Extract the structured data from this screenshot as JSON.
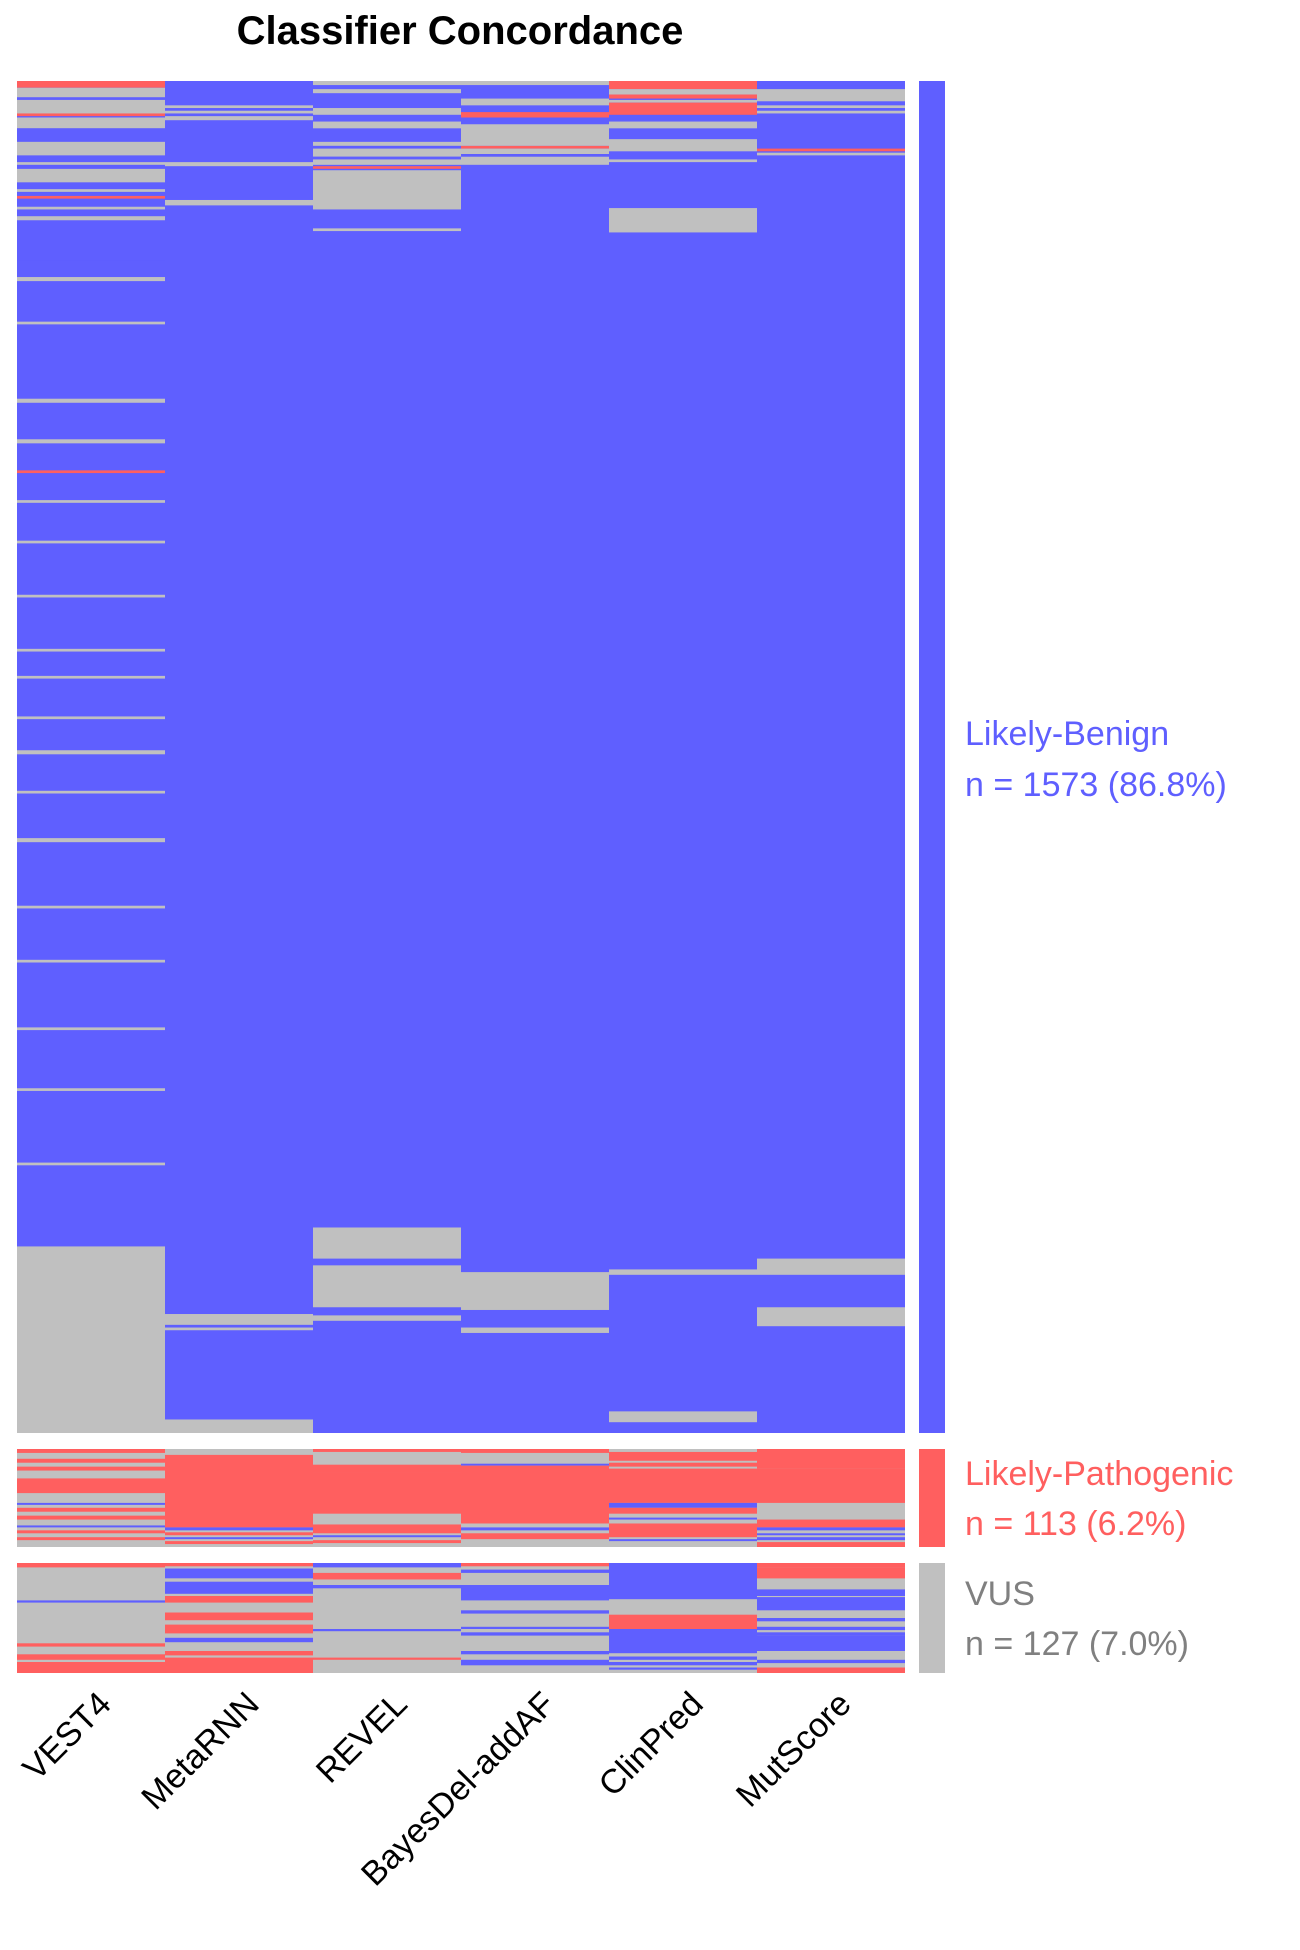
{
  "chart_data": {
    "type": "heatmap",
    "title": "Classifier Concordance",
    "columns": [
      "VEST4",
      "MetaRNN",
      "REVEL",
      "BayesDel-addAF",
      "ClinPred",
      "MutScore"
    ],
    "category_colors": {
      "Likely-Benign": "#5f5fff",
      "Likely-Pathogenic": "#ff5f5f",
      "VUS": "#c0c0c0"
    },
    "groups": [
      {
        "name": "Likely-Benign",
        "count_label": "n = 1573 (86.8%)",
        "n": 1573,
        "percent": 86.8,
        "color": "#5f5fff",
        "base": "#5f5fff",
        "cells": [
          [
            [
              0.0,
              0.005,
              "#ff5f5f"
            ],
            [
              0.005,
              0.035,
              "#c0c0c0"
            ],
            [
              0.012,
              0.014,
              "#5f5fff"
            ],
            [
              0.025,
              0.027,
              "#5f5fff"
            ],
            [
              0.024,
              0.026,
              "#ff5f5f"
            ],
            [
              0.035,
              0.045,
              "#5f5fff"
            ],
            [
              0.045,
              0.055,
              "#c0c0c0"
            ],
            [
              0.06,
              0.062,
              "#c0c0c0"
            ],
            [
              0.065,
              0.075,
              "#c0c0c0"
            ],
            [
              0.075,
              0.077,
              "#5f5fff"
            ],
            [
              0.08,
              0.082,
              "#c0c0c0"
            ],
            [
              0.085,
              0.087,
              "#ff5f5f"
            ],
            [
              0.093,
              0.095,
              "#c0c0c0"
            ],
            [
              0.1,
              0.103,
              "#c0c0c0"
            ],
            [
              0.133,
              0.135,
              "#5f5fff"
            ],
            [
              0.145,
              0.148,
              "#c0c0c0"
            ],
            [
              0.178,
              0.18,
              "#c0c0c0"
            ],
            [
              0.235,
              0.238,
              "#c0c0c0"
            ],
            [
              0.265,
              0.268,
              "#c0c0c0"
            ],
            [
              0.288,
              0.29,
              "#ff5f5f"
            ],
            [
              0.31,
              0.312,
              "#c0c0c0"
            ],
            [
              0.34,
              0.342,
              "#c0c0c0"
            ],
            [
              0.38,
              0.382,
              "#c0c0c0"
            ],
            [
              0.42,
              0.422,
              "#c0c0c0"
            ],
            [
              0.44,
              0.442,
              "#c0c0c0"
            ],
            [
              0.47,
              0.472,
              "#c0c0c0"
            ],
            [
              0.495,
              0.498,
              "#c0c0c0"
            ],
            [
              0.525,
              0.527,
              "#c0c0c0"
            ],
            [
              0.56,
              0.563,
              "#c0c0c0"
            ],
            [
              0.61,
              0.612,
              "#c0c0c0"
            ],
            [
              0.65,
              0.652,
              "#c0c0c0"
            ],
            [
              0.7,
              0.702,
              "#c0c0c0"
            ],
            [
              0.745,
              0.747,
              "#c0c0c0"
            ],
            [
              0.8,
              0.802,
              "#c0c0c0"
            ],
            [
              0.862,
              1.0,
              "#c0c0c0"
            ]
          ],
          [
            [
              0.0,
              0.01,
              "#5f5fff"
            ],
            [
              0.018,
              0.02,
              "#c0c0c0"
            ],
            [
              0.022,
              0.024,
              "#c0c0c0"
            ],
            [
              0.026,
              0.029,
              "#c0c0c0"
            ],
            [
              0.06,
              0.063,
              "#c0c0c0"
            ],
            [
              0.088,
              0.092,
              "#c0c0c0"
            ],
            [
              0.912,
              0.92,
              "#c0c0c0"
            ],
            [
              0.922,
              0.924,
              "#c0c0c0"
            ],
            [
              0.99,
              1.0,
              "#c0c0c0"
            ]
          ],
          [
            [
              0.0,
              0.003,
              "#c0c0c0"
            ],
            [
              0.006,
              0.009,
              "#c0c0c0"
            ],
            [
              0.02,
              0.025,
              "#c0c0c0"
            ],
            [
              0.03,
              0.035,
              "#c0c0c0"
            ],
            [
              0.045,
              0.048,
              "#c0c0c0"
            ],
            [
              0.048,
              0.05,
              "#5f5fff"
            ],
            [
              0.05,
              0.056,
              "#c0c0c0"
            ],
            [
              0.056,
              0.058,
              "#5f5fff"
            ],
            [
              0.058,
              0.062,
              "#c0c0c0"
            ],
            [
              0.063,
              0.065,
              "#ff5f5f"
            ],
            [
              0.065,
              0.066,
              "#5f5fff"
            ],
            [
              0.066,
              0.095,
              "#c0c0c0"
            ],
            [
              0.109,
              0.111,
              "#c0c0c0"
            ],
            [
              0.848,
              0.871,
              "#c0c0c0"
            ],
            [
              0.876,
              0.907,
              "#c0c0c0"
            ],
            [
              0.913,
              0.917,
              "#c0c0c0"
            ]
          ],
          [
            [
              0.0,
              0.003,
              "#c0c0c0"
            ],
            [
              0.013,
              0.018,
              "#c0c0c0"
            ],
            [
              0.023,
              0.027,
              "#ff5f5f"
            ],
            [
              0.032,
              0.048,
              "#c0c0c0"
            ],
            [
              0.048,
              0.05,
              "#ff5f5f"
            ],
            [
              0.05,
              0.054,
              "#c0c0c0"
            ],
            [
              0.054,
              0.056,
              "#5f5fff"
            ],
            [
              0.056,
              0.062,
              "#c0c0c0"
            ],
            [
              0.881,
              0.909,
              "#c0c0c0"
            ],
            [
              0.922,
              0.926,
              "#c0c0c0"
            ]
          ],
          [
            [
              0.0,
              0.006,
              "#ff5f5f"
            ],
            [
              0.006,
              0.01,
              "#c0c0c0"
            ],
            [
              0.01,
              0.013,
              "#ff5f5f"
            ],
            [
              0.014,
              0.016,
              "#c0c0c0"
            ],
            [
              0.016,
              0.025,
              "#ff5f5f"
            ],
            [
              0.03,
              0.035,
              "#c0c0c0"
            ],
            [
              0.043,
              0.052,
              "#c0c0c0"
            ],
            [
              0.058,
              0.06,
              "#c0c0c0"
            ],
            [
              0.094,
              0.112,
              "#c0c0c0"
            ],
            [
              0.879,
              0.883,
              "#c0c0c0"
            ],
            [
              0.984,
              0.992,
              "#c0c0c0"
            ]
          ],
          [
            [
              0.0,
              0.003,
              "#5f5fff"
            ],
            [
              0.006,
              0.015,
              "#c0c0c0"
            ],
            [
              0.018,
              0.02,
              "#c0c0c0"
            ],
            [
              0.022,
              0.024,
              "#c0c0c0"
            ],
            [
              0.05,
              0.052,
              "#ff5f5f"
            ],
            [
              0.053,
              0.055,
              "#c0c0c0"
            ],
            [
              0.871,
              0.883,
              "#c0c0c0"
            ],
            [
              0.907,
              0.921,
              "#c0c0c0"
            ]
          ]
        ]
      },
      {
        "name": "Likely-Pathogenic",
        "count_label": "n = 113 (6.2%)",
        "n": 113,
        "percent": 6.2,
        "color": "#ff5f5f",
        "base": "#c0c0c0",
        "cells": [
          [
            [
              0.0,
              0.04,
              "#ff5f5f"
            ],
            [
              0.1,
              0.14,
              "#ff5f5f"
            ],
            [
              0.18,
              0.22,
              "#ff5f5f"
            ],
            [
              0.3,
              0.45,
              "#ff5f5f"
            ],
            [
              0.55,
              0.57,
              "#5f5fff"
            ],
            [
              0.6,
              0.64,
              "#ff5f5f"
            ],
            [
              0.68,
              0.72,
              "#ff5f5f"
            ],
            [
              0.78,
              0.8,
              "#5f5fff"
            ],
            [
              0.83,
              0.86,
              "#ff5f5f"
            ],
            [
              0.9,
              0.93,
              "#ff5f5f"
            ]
          ],
          [
            [
              0.06,
              0.8,
              "#ff5f5f"
            ],
            [
              0.8,
              0.83,
              "#5f5fff"
            ],
            [
              0.85,
              0.88,
              "#ff5f5f"
            ],
            [
              0.9,
              0.92,
              "#5f5fff"
            ],
            [
              0.94,
              0.97,
              "#ff5f5f"
            ]
          ],
          [
            [
              0.0,
              0.03,
              "#ff5f5f"
            ],
            [
              0.16,
              0.24,
              "#ff5f5f"
            ],
            [
              0.24,
              0.66,
              "#ff5f5f"
            ],
            [
              0.77,
              0.86,
              "#ff5f5f"
            ],
            [
              0.88,
              0.9,
              "#5f5fff"
            ],
            [
              0.93,
              0.96,
              "#ff5f5f"
            ]
          ],
          [
            [
              0.0,
              0.04,
              "#ff5f5f"
            ],
            [
              0.15,
              0.17,
              "#5f5fff"
            ],
            [
              0.17,
              0.76,
              "#ff5f5f"
            ],
            [
              0.8,
              0.83,
              "#5f5fff"
            ],
            [
              0.86,
              0.92,
              "#ff5f5f"
            ]
          ],
          [
            [
              0.03,
              0.12,
              "#ff5f5f"
            ],
            [
              0.14,
              0.18,
              "#ff5f5f"
            ],
            [
              0.2,
              0.55,
              "#ff5f5f"
            ],
            [
              0.55,
              0.6,
              "#5f5fff"
            ],
            [
              0.6,
              0.66,
              "#ff5f5f"
            ],
            [
              0.7,
              0.72,
              "#5f5fff"
            ],
            [
              0.76,
              0.9,
              "#ff5f5f"
            ],
            [
              0.92,
              0.94,
              "#5f5fff"
            ]
          ],
          [
            [
              0.0,
              0.2,
              "#ff5f5f"
            ],
            [
              0.2,
              0.55,
              "#ff5f5f"
            ],
            [
              0.72,
              0.8,
              "#ff5f5f"
            ],
            [
              0.8,
              0.83,
              "#5f5fff"
            ],
            [
              0.86,
              0.88,
              "#5f5fff"
            ],
            [
              0.9,
              0.93,
              "#5f5fff"
            ],
            [
              0.95,
              1.0,
              "#ff5f5f"
            ]
          ]
        ]
      },
      {
        "name": "VUS",
        "count_label": "n = 127 (7.0%)",
        "n": 127,
        "percent": 7.0,
        "color": "#c0c0c0",
        "base": "#c0c0c0",
        "cells": [
          [
            [
              0.0,
              0.04,
              "#ff5f5f"
            ],
            [
              0.34,
              0.36,
              "#5f5fff"
            ],
            [
              0.73,
              0.76,
              "#ff5f5f"
            ],
            [
              0.83,
              0.88,
              "#ff5f5f"
            ],
            [
              0.9,
              1.0,
              "#ff5f5f"
            ]
          ],
          [
            [
              0.0,
              0.03,
              "#ff5f5f"
            ],
            [
              0.05,
              0.14,
              "#5f5fff"
            ],
            [
              0.14,
              0.17,
              "#c0c0c0"
            ],
            [
              0.17,
              0.28,
              "#5f5fff"
            ],
            [
              0.3,
              0.36,
              "#ff5f5f"
            ],
            [
              0.45,
              0.52,
              "#ff5f5f"
            ],
            [
              0.56,
              0.64,
              "#ff5f5f"
            ],
            [
              0.68,
              0.72,
              "#5f5fff"
            ],
            [
              0.8,
              0.84,
              "#ff5f5f"
            ],
            [
              0.86,
              1.0,
              "#ff5f5f"
            ]
          ],
          [
            [
              0.0,
              0.04,
              "#5f5fff"
            ],
            [
              0.09,
              0.15,
              "#ff5f5f"
            ],
            [
              0.2,
              0.23,
              "#5f5fff"
            ],
            [
              0.6,
              0.62,
              "#5f5fff"
            ],
            [
              0.86,
              0.88,
              "#ff5f5f"
            ]
          ],
          [
            [
              0.0,
              0.03,
              "#ff5f5f"
            ],
            [
              0.06,
              0.09,
              "#5f5fff"
            ],
            [
              0.2,
              0.34,
              "#5f5fff"
            ],
            [
              0.43,
              0.46,
              "#5f5fff"
            ],
            [
              0.58,
              0.6,
              "#5f5fff"
            ],
            [
              0.63,
              0.66,
              "#5f5fff"
            ],
            [
              0.8,
              0.83,
              "#5f5fff"
            ],
            [
              0.88,
              0.93,
              "#5f5fff"
            ]
          ],
          [
            [
              0.0,
              0.33,
              "#5f5fff"
            ],
            [
              0.33,
              0.47,
              "#c0c0c0"
            ],
            [
              0.47,
              0.6,
              "#ff5f5f"
            ],
            [
              0.6,
              0.82,
              "#5f5fff"
            ],
            [
              0.85,
              0.88,
              "#5f5fff"
            ],
            [
              0.9,
              0.93,
              "#5f5fff"
            ],
            [
              0.95,
              0.97,
              "#5f5fff"
            ]
          ],
          [
            [
              0.0,
              0.04,
              "#ff5f5f"
            ],
            [
              0.04,
              0.14,
              "#ff5f5f"
            ],
            [
              0.24,
              0.3,
              "#5f5fff"
            ],
            [
              0.31,
              0.43,
              "#5f5fff"
            ],
            [
              0.5,
              0.53,
              "#5f5fff"
            ],
            [
              0.58,
              0.61,
              "#5f5fff"
            ],
            [
              0.63,
              0.66,
              "#5f5fff"
            ],
            [
              0.66,
              0.8,
              "#5f5fff"
            ],
            [
              0.88,
              0.91,
              "#5f5fff"
            ],
            [
              0.95,
              1.0,
              "#ff5f5f"
            ]
          ]
        ]
      }
    ]
  }
}
